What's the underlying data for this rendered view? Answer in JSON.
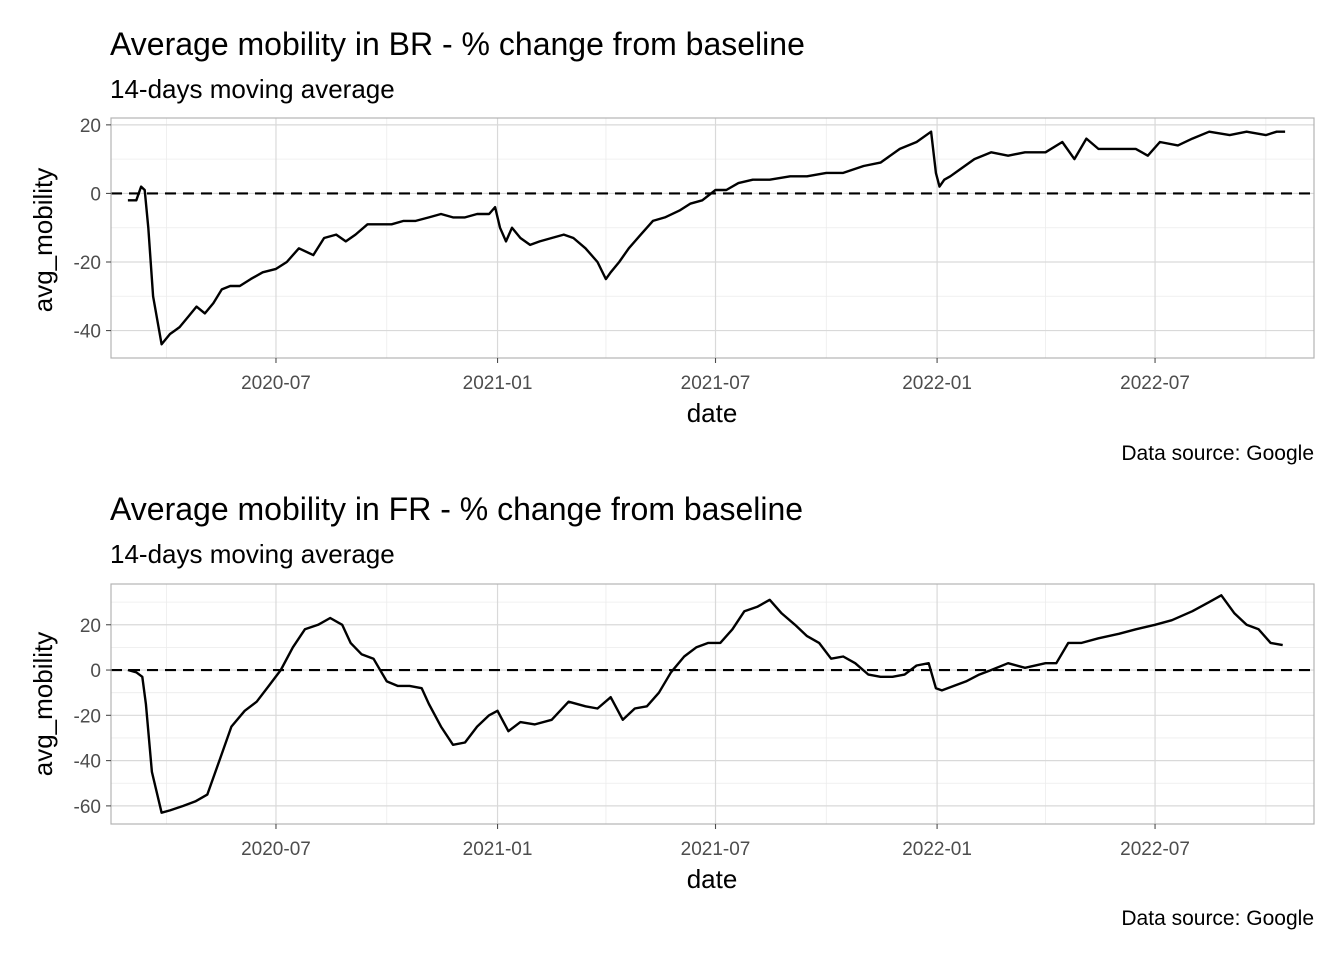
{
  "chart_data": [
    {
      "type": "line",
      "title": "Average mobility in BR - % change from baseline",
      "subtitle": "14-days moving average",
      "xlabel": "date",
      "ylabel": "avg_mobility",
      "caption": "Data source: Google",
      "xlim": [
        "2020-02-15",
        "2022-11-10"
      ],
      "ylim": [
        -48,
        22
      ],
      "x_ticks": [
        "2020-07",
        "2021-01",
        "2021-07",
        "2022-01",
        "2022-07"
      ],
      "y_ticks": [
        -40,
        -20,
        0,
        20
      ],
      "reference_line": {
        "y": 0,
        "style": "dashed"
      },
      "grid": true,
      "legend": "none",
      "series": [
        {
          "x": [
            "2020-02-29",
            "2020-03-07",
            "2020-03-11",
            "2020-03-14",
            "2020-03-17",
            "2020-03-21",
            "2020-03-28",
            "2020-04-04",
            "2020-04-08",
            "2020-04-12",
            "2020-04-19",
            "2020-04-26",
            "2020-05-03",
            "2020-05-10",
            "2020-05-17",
            "2020-05-24",
            "2020-06-01",
            "2020-06-10",
            "2020-06-20",
            "2020-07-01",
            "2020-07-10",
            "2020-07-20",
            "2020-08-01",
            "2020-08-10",
            "2020-08-20",
            "2020-08-28",
            "2020-09-05",
            "2020-09-15",
            "2020-09-25",
            "2020-10-05",
            "2020-10-15",
            "2020-10-25",
            "2020-11-05",
            "2020-11-15",
            "2020-11-25",
            "2020-12-05",
            "2020-12-15",
            "2020-12-25",
            "2020-12-30",
            "2021-01-03",
            "2021-01-08",
            "2021-01-13",
            "2021-01-20",
            "2021-01-28",
            "2021-02-05",
            "2021-02-15",
            "2021-02-25",
            "2021-03-05",
            "2021-03-15",
            "2021-03-25",
            "2021-04-01",
            "2021-04-05",
            "2021-04-12",
            "2021-04-20",
            "2021-04-30",
            "2021-05-10",
            "2021-05-20",
            "2021-06-01",
            "2021-06-10",
            "2021-06-20",
            "2021-07-01",
            "2021-07-10",
            "2021-07-20",
            "2021-08-01",
            "2021-08-15",
            "2021-09-01",
            "2021-09-15",
            "2021-10-01",
            "2021-10-15",
            "2021-11-01",
            "2021-11-15",
            "2021-12-01",
            "2021-12-15",
            "2021-12-27",
            "2021-12-31",
            "2022-01-03",
            "2022-01-07",
            "2022-01-12",
            "2022-01-20",
            "2022-02-01",
            "2022-02-15",
            "2022-03-01",
            "2022-03-15",
            "2022-04-01",
            "2022-04-15",
            "2022-04-25",
            "2022-05-05",
            "2022-05-15",
            "2022-06-01",
            "2022-06-15",
            "2022-06-25",
            "2022-07-05",
            "2022-07-20",
            "2022-08-01",
            "2022-08-15",
            "2022-09-01",
            "2022-09-15",
            "2022-10-01",
            "2022-10-10",
            "2022-10-17"
          ],
          "y": [
            -2,
            -2,
            2,
            1,
            -10,
            -30,
            -44,
            -41,
            -40,
            -39,
            -36,
            -33,
            -35,
            -32,
            -28,
            -27,
            -27,
            -25,
            -23,
            -22,
            -20,
            -16,
            -18,
            -13,
            -12,
            -14,
            -12,
            -9,
            -9,
            -9,
            -8,
            -8,
            -7,
            -6,
            -7,
            -7,
            -6,
            -6,
            -4,
            -10,
            -14,
            -10,
            -13,
            -15,
            -14,
            -13,
            -12,
            -13,
            -16,
            -20,
            -25,
            -23,
            -20,
            -16,
            -12,
            -8,
            -7,
            -5,
            -3,
            -2,
            1,
            1,
            3,
            4,
            4,
            5,
            5,
            6,
            6,
            8,
            9,
            13,
            15,
            18,
            6,
            2,
            4,
            5,
            7,
            10,
            12,
            11,
            12,
            12,
            15,
            10,
            16,
            13,
            13,
            13,
            11,
            15,
            14,
            16,
            18,
            17,
            18,
            17,
            18,
            18
          ]
        }
      ]
    },
    {
      "type": "line",
      "title": "Average mobility in FR - % change from baseline",
      "subtitle": "14-days moving average",
      "xlabel": "date",
      "ylabel": "avg_mobility",
      "caption": "Data source: Google",
      "xlim": [
        "2020-02-15",
        "2022-11-10"
      ],
      "ylim": [
        -68,
        38
      ],
      "x_ticks": [
        "2020-07",
        "2021-01",
        "2021-07",
        "2022-01",
        "2022-07"
      ],
      "y_ticks": [
        -60,
        -40,
        -20,
        0,
        20
      ],
      "reference_line": {
        "y": 0,
        "style": "dashed"
      },
      "grid": true,
      "legend": "none",
      "series": [
        {
          "x": [
            "2020-02-29",
            "2020-03-07",
            "2020-03-12",
            "2020-03-15",
            "2020-03-20",
            "2020-03-28",
            "2020-04-04",
            "2020-04-15",
            "2020-04-25",
            "2020-05-05",
            "2020-05-15",
            "2020-05-25",
            "2020-06-05",
            "2020-06-15",
            "2020-06-25",
            "2020-07-05",
            "2020-07-15",
            "2020-07-25",
            "2020-08-05",
            "2020-08-15",
            "2020-08-25",
            "2020-09-01",
            "2020-09-10",
            "2020-09-20",
            "2020-10-01",
            "2020-10-10",
            "2020-10-20",
            "2020-10-30",
            "2020-11-05",
            "2020-11-15",
            "2020-11-25",
            "2020-12-05",
            "2020-12-15",
            "2020-12-25",
            "2021-01-01",
            "2021-01-10",
            "2021-01-20",
            "2021-02-01",
            "2021-02-15",
            "2021-03-01",
            "2021-03-15",
            "2021-03-25",
            "2021-04-05",
            "2021-04-15",
            "2021-04-25",
            "2021-05-05",
            "2021-05-15",
            "2021-05-25",
            "2021-06-05",
            "2021-06-15",
            "2021-06-25",
            "2021-07-05",
            "2021-07-15",
            "2021-07-25",
            "2021-08-05",
            "2021-08-15",
            "2021-08-25",
            "2021-09-05",
            "2021-09-15",
            "2021-09-25",
            "2021-10-05",
            "2021-10-15",
            "2021-10-25",
            "2021-11-05",
            "2021-11-15",
            "2021-11-25",
            "2021-12-05",
            "2021-12-15",
            "2021-12-25",
            "2021-12-31",
            "2022-01-05",
            "2022-01-15",
            "2022-01-25",
            "2022-02-05",
            "2022-02-15",
            "2022-03-01",
            "2022-03-15",
            "2022-04-01",
            "2022-04-10",
            "2022-04-20",
            "2022-05-01",
            "2022-05-15",
            "2022-06-01",
            "2022-06-15",
            "2022-07-01",
            "2022-07-15",
            "2022-08-01",
            "2022-08-15",
            "2022-08-25",
            "2022-09-05",
            "2022-09-15",
            "2022-09-25",
            "2022-10-05",
            "2022-10-15"
          ],
          "y": [
            0,
            -1,
            -3,
            -15,
            -45,
            -63,
            -62,
            -60,
            -58,
            -55,
            -40,
            -25,
            -18,
            -14,
            -7,
            0,
            10,
            18,
            20,
            23,
            20,
            12,
            7,
            5,
            -5,
            -7,
            -7,
            -8,
            -15,
            -25,
            -33,
            -32,
            -25,
            -20,
            -18,
            -27,
            -23,
            -24,
            -22,
            -14,
            -16,
            -17,
            -12,
            -22,
            -17,
            -16,
            -10,
            -1,
            6,
            10,
            12,
            12,
            18,
            26,
            28,
            31,
            25,
            20,
            15,
            12,
            5,
            6,
            3,
            -2,
            -3,
            -3,
            -2,
            2,
            3,
            -8,
            -9,
            -7,
            -5,
            -2,
            0,
            3,
            1,
            3,
            3,
            12,
            12,
            14,
            16,
            18,
            20,
            22,
            26,
            30,
            33,
            25,
            20,
            18,
            12,
            11
          ]
        }
      ]
    }
  ]
}
